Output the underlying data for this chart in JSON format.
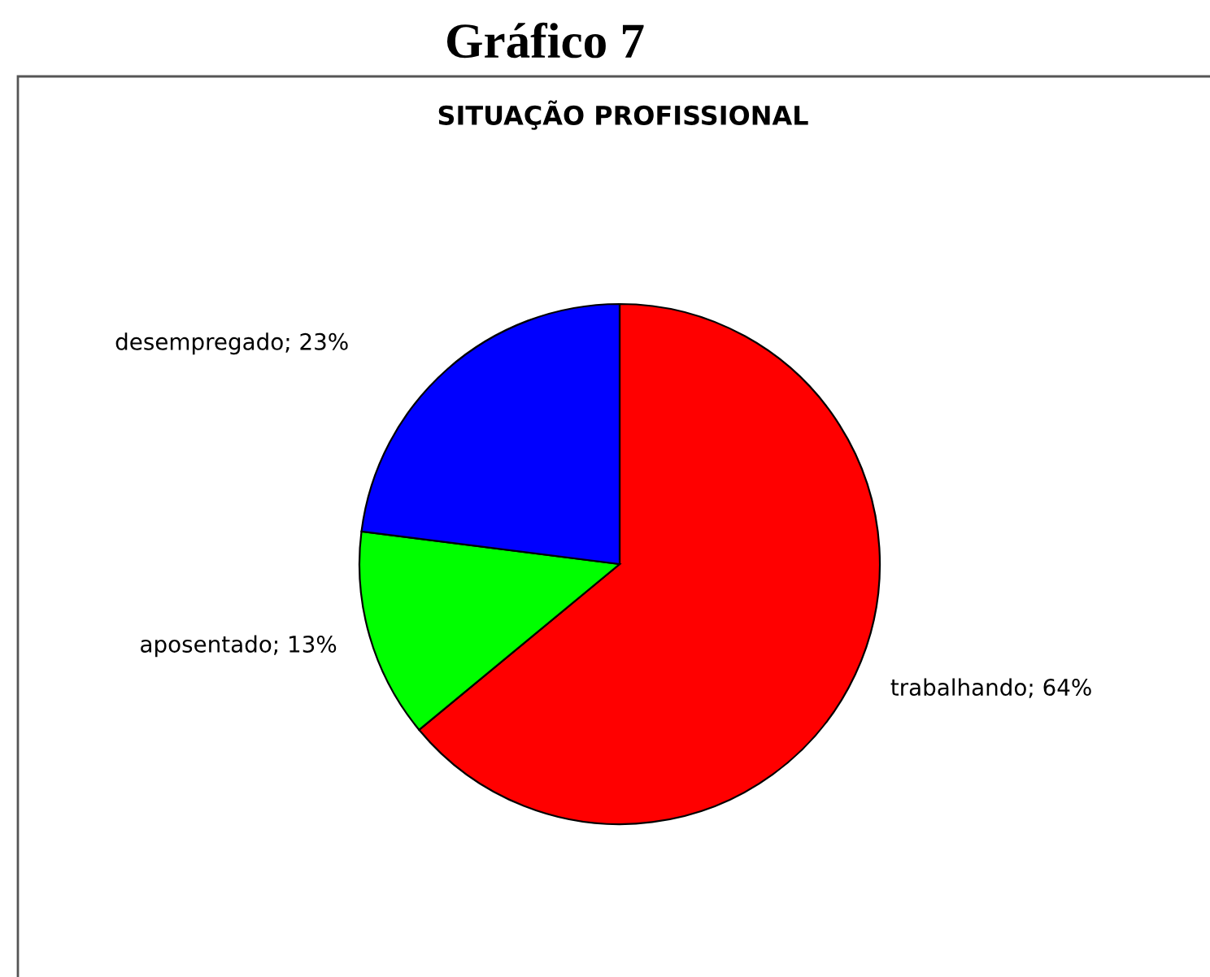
{
  "chart_data": {
    "type": "pie",
    "title": "Gráfico 7",
    "subtitle": "SITUAÇÃO PROFISSIONAL",
    "categories": [
      "trabalhando",
      "aposentado",
      "desempregado"
    ],
    "values": [
      64,
      13,
      23
    ],
    "colors": [
      "#ff0000",
      "#00ff00",
      "#0000ff"
    ],
    "value_labels": [
      "64%",
      "13%",
      "23%"
    ]
  }
}
